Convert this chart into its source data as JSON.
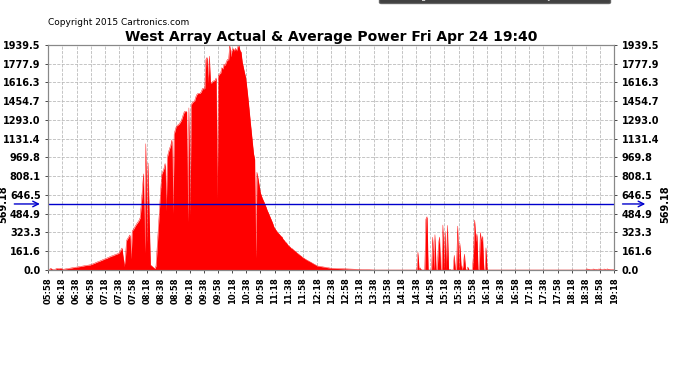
{
  "title": "West Array Actual & Average Power Fri Apr 24 19:40",
  "copyright": "Copyright 2015 Cartronics.com",
  "average_value": 569.18,
  "y_tick_values": [
    0.0,
    161.6,
    323.3,
    484.9,
    646.5,
    808.1,
    969.8,
    1131.4,
    1293.0,
    1454.7,
    1616.3,
    1777.9,
    1939.5
  ],
  "ylim": [
    0.0,
    1939.5
  ],
  "background_color": "#ffffff",
  "fill_color": "#ff0000",
  "avg_line_color": "#0000cc",
  "grid_color": "#bbbbbb",
  "legend_avg_bg": "#0000cc",
  "legend_west_bg": "#ff0000",
  "x_labels": [
    "05:58",
    "06:18",
    "06:38",
    "06:58",
    "07:18",
    "07:38",
    "07:58",
    "08:18",
    "08:38",
    "08:58",
    "09:18",
    "09:38",
    "09:58",
    "10:18",
    "10:38",
    "10:58",
    "11:18",
    "11:38",
    "11:58",
    "12:18",
    "12:38",
    "12:58",
    "13:18",
    "13:38",
    "13:58",
    "14:18",
    "14:38",
    "14:58",
    "15:18",
    "15:38",
    "15:58",
    "16:18",
    "16:38",
    "16:58",
    "17:18",
    "17:38",
    "17:58",
    "18:18",
    "18:38",
    "18:58",
    "19:18"
  ],
  "seed": 12345,
  "n_points": 500
}
